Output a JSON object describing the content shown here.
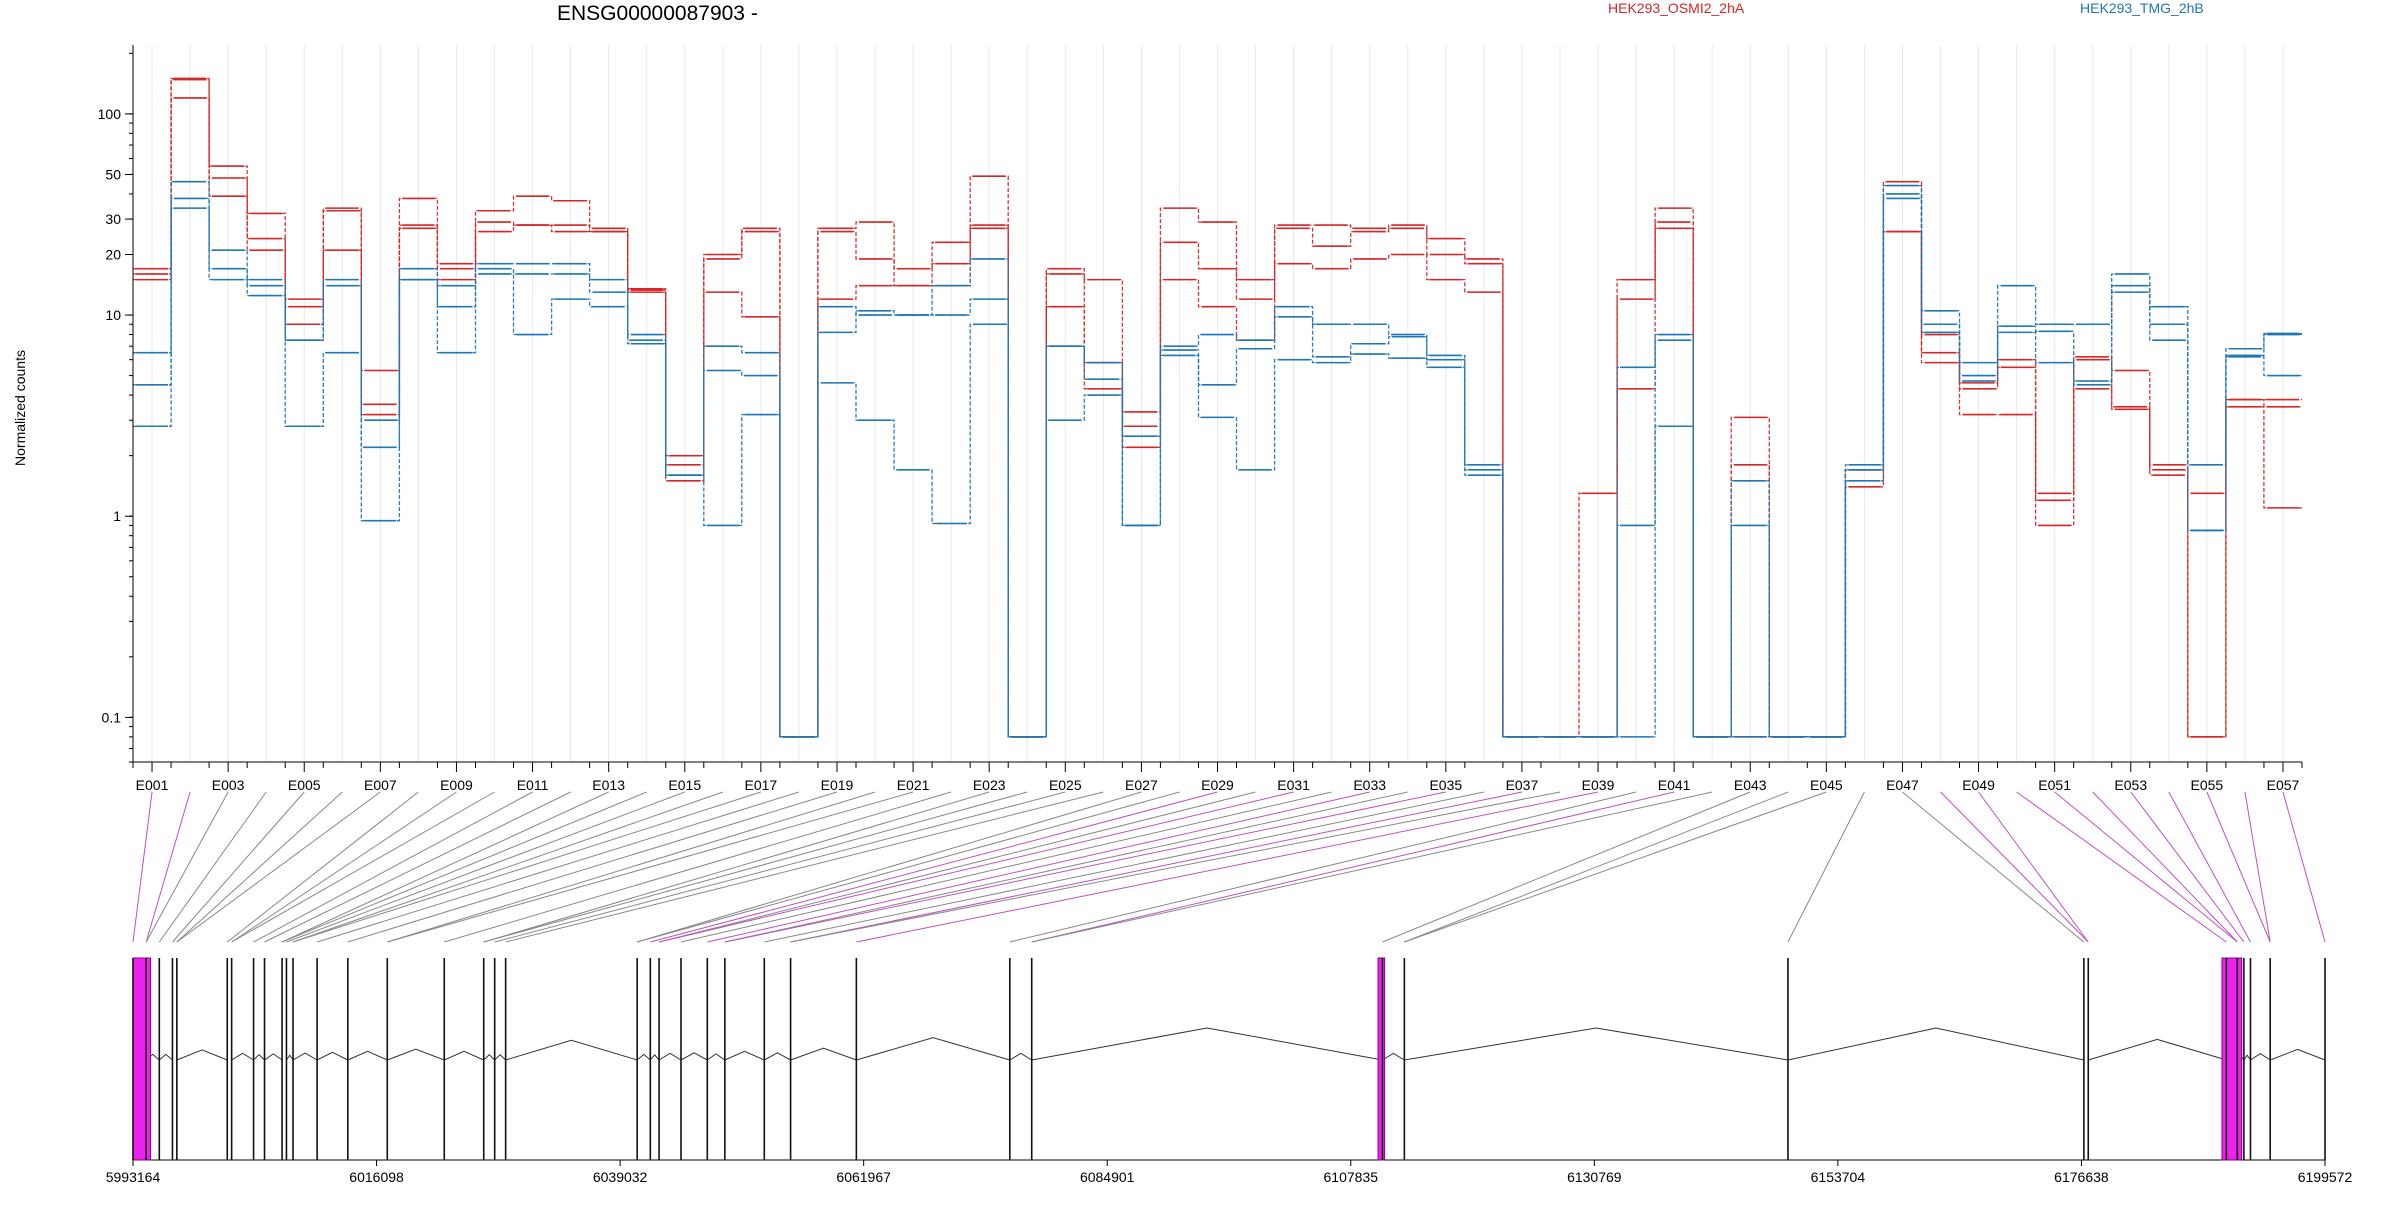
{
  "chart_data": {
    "type": "line",
    "title": "ENSG00000087903 -",
    "ylabel": "Normalized counts",
    "yscale": "log",
    "ylim": [
      0.06,
      220
    ],
    "y_ticks": [
      0.1,
      1,
      10,
      20,
      30,
      50,
      100
    ],
    "y_tick_labels": [
      "0.1",
      "1",
      "10",
      "20",
      "30",
      "50",
      "100"
    ],
    "legend": [
      {
        "name": "HEK293_OSMI2_2hA",
        "color": "#d62728"
      },
      {
        "name": "HEK293_TMG_2hB",
        "color": "#1f77b4"
      }
    ],
    "exon_tick_labels": [
      "E001",
      "E003",
      "E005",
      "E007",
      "E009",
      "E011",
      "E013",
      "E015",
      "E017",
      "E019",
      "E021",
      "E023",
      "E025",
      "E027",
      "E029",
      "E031",
      "E033",
      "E035",
      "E037",
      "E039",
      "E041",
      "E043",
      "E045",
      "E047",
      "E049",
      "E051",
      "E053",
      "E055",
      "E057"
    ],
    "series": [
      {
        "name": "HEK293_OSMI2_2hA",
        "color": "#d62728",
        "values": [
          17,
          150,
          55,
          32,
          9,
          34,
          3.6,
          38,
          18,
          33,
          39,
          37,
          27,
          13.5,
          2,
          20,
          27,
          0.08,
          27,
          29,
          17,
          23,
          49,
          0.08,
          17,
          4.3,
          2.2,
          34,
          29,
          15,
          28,
          28,
          27,
          28,
          24,
          19,
          0.08,
          0.08,
          1.3,
          15,
          34,
          0.08,
          3.1,
          0.08,
          0.08,
          1.7,
          46,
          8,
          4.6,
          6,
          1.3,
          6.2,
          5.3,
          1.8,
          1.3,
          3.8,
          3.8
        ]
      },
      {
        "name": "HEK293_OSMI2_2hA",
        "color": "#d62728",
        "values": [
          16,
          148,
          48,
          24,
          12,
          33,
          5.3,
          28,
          17,
          29,
          28,
          28,
          26,
          13.3,
          1.8,
          19,
          26,
          0.08,
          26,
          19,
          14,
          18,
          28,
          0.08,
          16,
          15,
          3.3,
          23,
          17,
          12,
          27,
          22,
          26,
          27,
          20,
          18,
          0.08,
          0.08,
          0.08,
          12,
          29,
          0.08,
          1.8,
          0.08,
          0.08,
          1.7,
          26,
          6.5,
          4.3,
          5.5,
          1.2,
          6,
          3.5,
          1.7,
          0.08,
          3.8,
          3.5
        ]
      },
      {
        "name": "HEK293_OSMI2_2hA",
        "color": "#d62728",
        "values": [
          15,
          120,
          39,
          21,
          11,
          21,
          3.2,
          27,
          15,
          26,
          28,
          26,
          26,
          13,
          1.5,
          13,
          9.8,
          0.08,
          12,
          14,
          14,
          14,
          27,
          0.08,
          11,
          5.8,
          2.8,
          15,
          11,
          7.5,
          18,
          17,
          19,
          20,
          15,
          13,
          0.08,
          0.08,
          0.08,
          4.3,
          27,
          0.08,
          0.08,
          0.08,
          0.08,
          1.4,
          26,
          5.8,
          3.2,
          3.2,
          0.9,
          4.3,
          3.4,
          1.6,
          0.08,
          3.5,
          1.1
        ]
      },
      {
        "name": "HEK293_TMG_2hB",
        "color": "#1f77b4",
        "values": [
          6.5,
          46,
          21,
          15,
          7.5,
          15,
          3,
          17,
          14,
          18,
          18,
          18,
          15,
          8,
          1.6,
          7,
          6.5,
          0.08,
          11,
          10,
          10,
          14,
          19,
          0.08,
          7,
          5.8,
          2.5,
          7,
          8,
          7.5,
          11,
          9,
          9,
          8,
          6,
          1.8,
          0.08,
          0.08,
          0.08,
          5.5,
          8,
          0.08,
          0.08,
          0.08,
          0.08,
          1.8,
          44,
          10.5,
          5.8,
          14,
          9,
          9,
          16,
          11,
          1.8,
          6.8,
          8
        ]
      },
      {
        "name": "HEK293_TMG_2hB",
        "color": "#1f77b4",
        "values": [
          4.5,
          38,
          17,
          14,
          7.5,
          14,
          2.2,
          15,
          11,
          17,
          16,
          16,
          13,
          7.5,
          1.6,
          5.3,
          5,
          0.08,
          8.2,
          10.5,
          10,
          10,
          12,
          0.08,
          7,
          4.8,
          0.9,
          6.7,
          4.5,
          6.8,
          9.8,
          6.2,
          7.2,
          7.8,
          6.3,
          1.7,
          0.08,
          0.08,
          0.08,
          0.9,
          7.5,
          0.08,
          1.5,
          0.08,
          0.08,
          1.7,
          40,
          9,
          5,
          8.8,
          8.3,
          4.7,
          14,
          9,
          0.85,
          6.3,
          8.1
        ]
      },
      {
        "name": "HEK293_TMG_2hB",
        "color": "#1f77b4",
        "values": [
          2.8,
          34,
          15,
          12.5,
          2.8,
          6.5,
          0.95,
          15,
          6.5,
          16,
          8,
          12,
          11,
          7.2,
          1.6,
          0.9,
          3.2,
          0.08,
          4.6,
          3,
          1.7,
          0.92,
          9,
          0.08,
          3,
          4,
          0.9,
          6.3,
          3.1,
          1.7,
          6,
          5.8,
          6.4,
          6.1,
          5.5,
          1.6,
          0.08,
          0.08,
          0.08,
          0.08,
          2.8,
          0.08,
          0.9,
          0.08,
          0.08,
          1.5,
          38,
          8.2,
          4.7,
          8.2,
          5.8,
          4.5,
          13,
          7.5,
          0.85,
          6.2,
          5
        ]
      }
    ],
    "genomic_axis": {
      "tick_labels": [
        "5993164",
        "6016098",
        "6039032",
        "6061967",
        "6084901",
        "6107835",
        "6130769",
        "6153704",
        "6176638",
        "6199572"
      ],
      "range": [
        5993164,
        6199572
      ]
    }
  }
}
